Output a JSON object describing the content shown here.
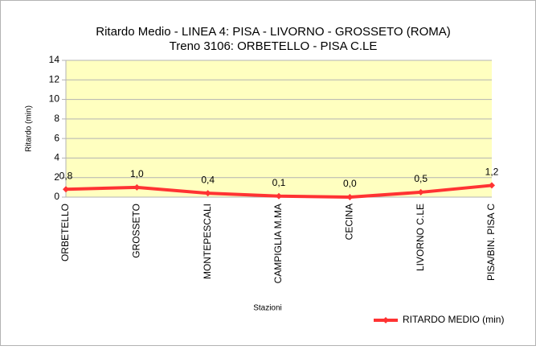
{
  "chart_data": {
    "type": "line",
    "title": "Ritardo Medio - LINEA 4: PISA - LIVORNO - GROSSETO (ROMA)",
    "subtitle": "Treno 3106: ORBETELLO - PISA C.LE",
    "x_label": "Stazioni",
    "y_label": "Ritardo (min)",
    "categories": [
      "ORBETELLO",
      "GROSSETO",
      "MONTEPESCALI",
      "CAMPIGLIA M.MA",
      "CECINA",
      "LIVORNO C.LE",
      "PISA/BIN. PISA C"
    ],
    "series": [
      {
        "name": "RITARDO MEDIO (min)",
        "color": "#ff3333",
        "values": [
          0.8,
          1.0,
          0.4,
          0.1,
          0.0,
          0.5,
          1.2
        ],
        "value_labels": [
          "0,8",
          "1,0",
          "0,4",
          "0,1",
          "0,0",
          "0,5",
          "1,2"
        ]
      }
    ],
    "ylim": [
      0,
      14
    ],
    "yticks": [
      0,
      2,
      4,
      6,
      8,
      10,
      12,
      14
    ],
    "grid": true,
    "legend": "bottom-right"
  }
}
